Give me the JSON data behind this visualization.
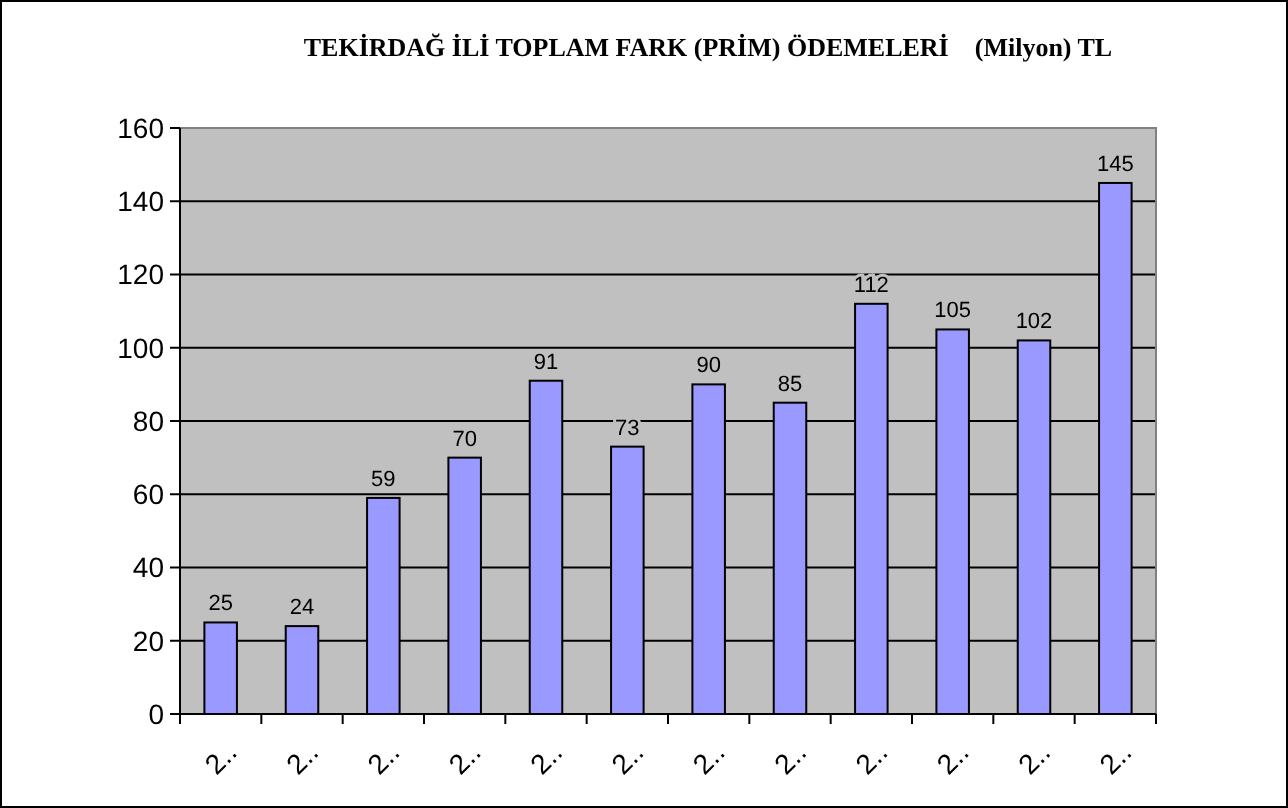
{
  "chart_data": {
    "type": "bar",
    "title": "TEKİRDAĞ İLİ TOPLAM FARK (PRİM) ÖDEMELERİ    (Milyon) TL",
    "categories": [
      "2..",
      "2..",
      "2..",
      "2..",
      "2..",
      "2..",
      "2..",
      "2..",
      "2..",
      "2..",
      "2..",
      "2.."
    ],
    "values": [
      25,
      24,
      59,
      70,
      91,
      73,
      90,
      85,
      112,
      105,
      102,
      145
    ],
    "color": "#9999ff",
    "ylim": [
      0,
      160
    ],
    "yticks": [
      0,
      20,
      40,
      60,
      80,
      100,
      120,
      140,
      160
    ],
    "grid": "y",
    "data_labels": true
  }
}
